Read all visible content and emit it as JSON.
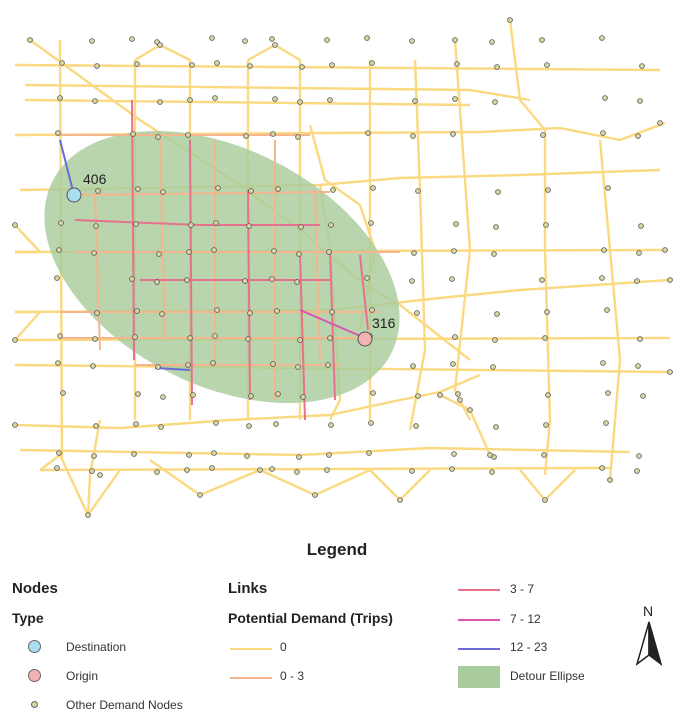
{
  "labels": {
    "destination_id": "406",
    "origin_id": "316"
  },
  "legend": {
    "title": "Legend",
    "nodes_heading": "Nodes",
    "type_heading": "Type",
    "destination": "Destination",
    "origin": "Origin",
    "other_nodes": "Other Demand Nodes",
    "links_heading": "Links",
    "demand_heading": "Potential Demand (Trips)",
    "range_0": "0",
    "range_0_3": "0 - 3",
    "range_3_7": "3 - 7",
    "range_7_12": "7 - 12",
    "range_12_23": "12 - 23",
    "ellipse": "Detour Ellipse",
    "north": "N"
  },
  "colors": {
    "road_0": "#fbd980",
    "road_0_3": "#f5b58e",
    "road_3_7": "#e8708f",
    "road_7_12": "#dd55b0",
    "road_12_23": "#6a6ad8",
    "ellipse": "#a8cc9c",
    "destination": "#a8def0",
    "origin": "#f4b3b3",
    "node": "#d8d6a0"
  }
}
